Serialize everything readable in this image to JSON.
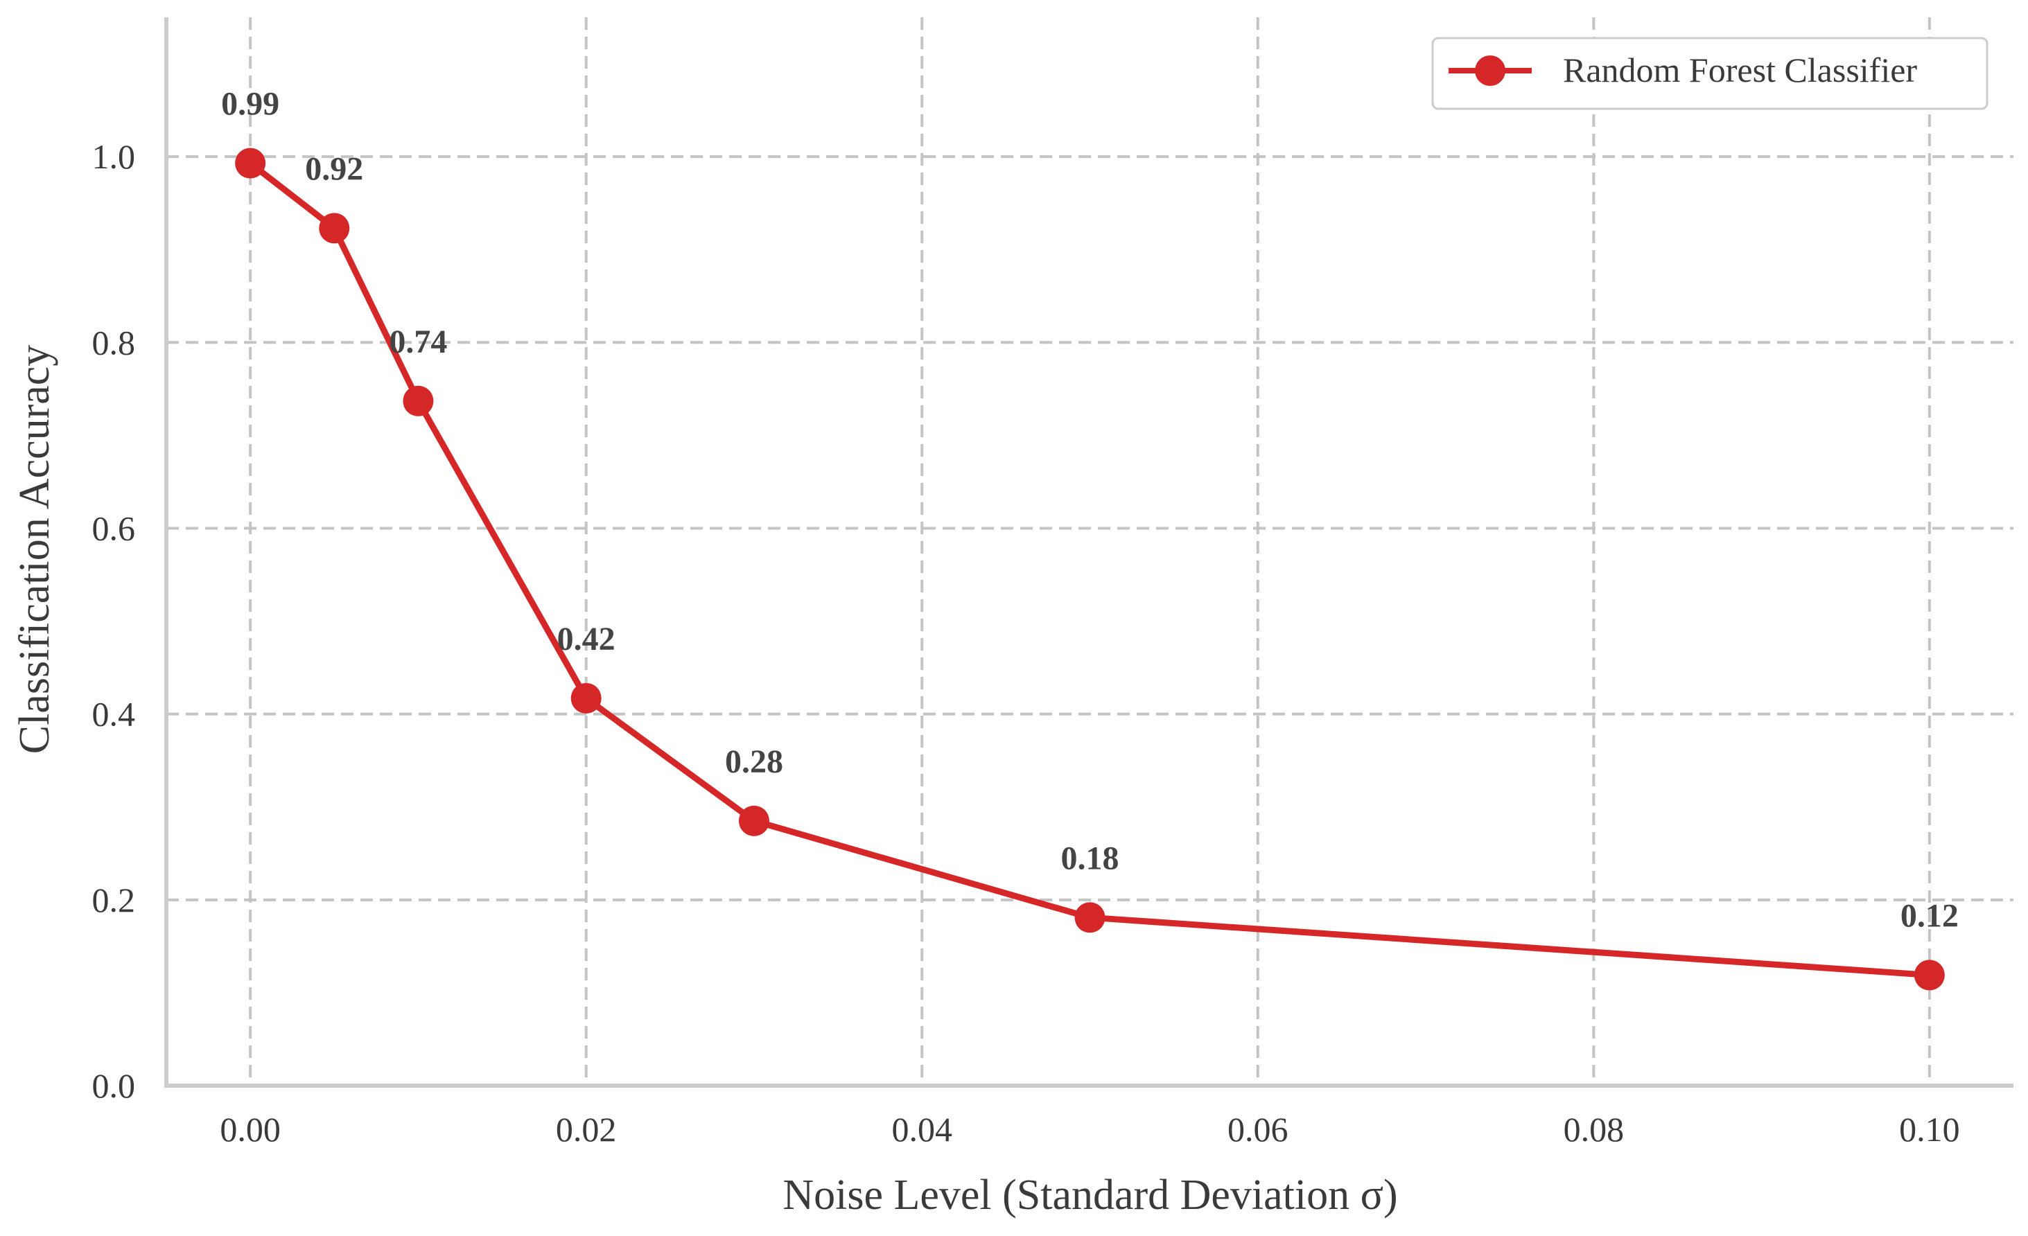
{
  "colors": {
    "series": "#d62728",
    "grid": "#c4c4c4",
    "spine": "#cccccc",
    "text": "#3a3a3a",
    "data_label": "#444444"
  },
  "chart_data": {
    "type": "line",
    "title": "",
    "xlabel": "Noise Level (Standard Deviation σ)",
    "ylabel": "Classification Accuracy",
    "xlim": [
      -0.005,
      0.105
    ],
    "ylim": [
      0,
      1.15
    ],
    "xticks": [
      0.0,
      0.02,
      0.04,
      0.06,
      0.08,
      0.1
    ],
    "xtick_labels": [
      "0.00",
      "0.02",
      "0.04",
      "0.06",
      "0.08",
      "0.10"
    ],
    "yticks": [
      0.0,
      0.2,
      0.4,
      0.6,
      0.8,
      1.0
    ],
    "ytick_labels": [
      "0.0",
      "0.2",
      "0.4",
      "0.6",
      "0.8",
      "1.0"
    ],
    "grid": true,
    "legend_position": "top-right",
    "series": [
      {
        "name": "Random Forest Classifier",
        "color": "#d62728",
        "marker": "circle",
        "x": [
          0.0,
          0.005,
          0.01,
          0.02,
          0.03,
          0.05,
          0.1
        ],
        "y": [
          0.993,
          0.923,
          0.737,
          0.417,
          0.285,
          0.181,
          0.119
        ],
        "labels": [
          "0.99",
          "0.92",
          "0.74",
          "0.42",
          "0.28",
          "0.18",
          "0.12"
        ]
      }
    ]
  }
}
